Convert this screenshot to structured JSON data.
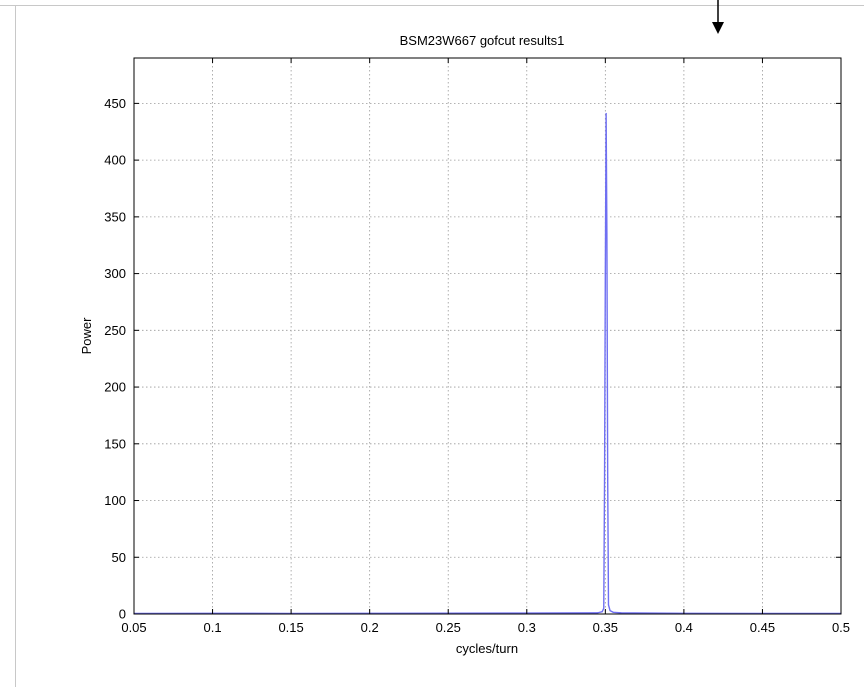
{
  "chart_data": {
    "type": "line",
    "title": "BSM23W667 gofcut results1",
    "xlabel": "cycles/turn",
    "ylabel": "Power",
    "xlim": [
      0.05,
      0.5
    ],
    "ylim": [
      0,
      490
    ],
    "xticks": [
      "0.05",
      "0.1",
      "0.15",
      "0.2",
      "0.25",
      "0.3",
      "0.35",
      "0.4",
      "0.45",
      "0.5"
    ],
    "yticks": [
      "0",
      "50",
      "100",
      "150",
      "200",
      "250",
      "300",
      "350",
      "400",
      "450"
    ],
    "grid": true,
    "series": [
      {
        "color": "#6f6ff2",
        "x": [
          0.05,
          0.1,
          0.15,
          0.2,
          0.25,
          0.3,
          0.345,
          0.348,
          0.349,
          0.3495,
          0.35,
          0.3505,
          0.351,
          0.3515,
          0.352,
          0.353,
          0.355,
          0.36,
          0.4,
          0.45,
          0.5
        ],
        "y": [
          0.5,
          0.6,
          0.5,
          0.6,
          0.7,
          0.8,
          1.0,
          2.0,
          5.0,
          118,
          300,
          441,
          335,
          120,
          8,
          3,
          1.5,
          1.0,
          0.6,
          0.5,
          0.5
        ]
      }
    ]
  },
  "annotation": {
    "arrow_icon": "down-arrow-icon",
    "color": "#000000"
  }
}
